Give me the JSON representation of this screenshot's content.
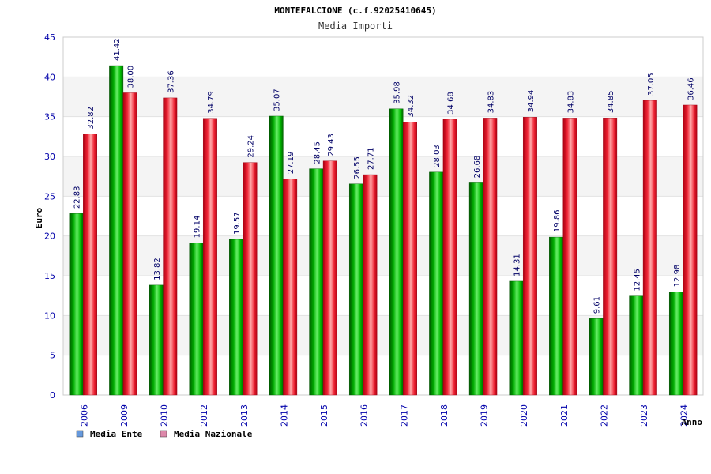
{
  "chart_data": {
    "type": "bar",
    "title": "MONTEFALCIONE (c.f.92025410645)",
    "subtitle": "Media Importi",
    "ylabel": "Euro",
    "xlabel": "Anno",
    "ylim": [
      0,
      45
    ],
    "yticks": [
      "0",
      "5",
      "10",
      "15",
      "20",
      "25",
      "30",
      "35",
      "40",
      "45"
    ],
    "grid": true,
    "legend_placement": "bottom-left",
    "categories": [
      "2006",
      "2009",
      "2010",
      "2012",
      "2013",
      "2014",
      "2015",
      "2016",
      "2017",
      "2018",
      "2019",
      "2020",
      "2021",
      "2022",
      "2023",
      "2024"
    ],
    "series": [
      {
        "name": "Media Ente",
        "legend_color": "#6699dd",
        "bar_color": "#00aa00",
        "values": [
          22.83,
          41.42,
          13.82,
          19.14,
          19.57,
          35.07,
          28.45,
          26.55,
          35.98,
          28.03,
          26.68,
          14.31,
          19.86,
          9.61,
          12.45,
          12.98
        ],
        "labels": [
          "22.83",
          "41.42",
          "13.82",
          "19.14",
          "19.57",
          "35.07",
          "28.45",
          "26.55",
          "35.98",
          "28.03",
          "26.68",
          "14.31",
          "19.86",
          "9.61",
          "12.45",
          "12.98"
        ]
      },
      {
        "name": "Media Nazionale",
        "legend_color": "#dd88aa",
        "bar_color": "#ee2233",
        "values": [
          32.82,
          38.0,
          37.36,
          34.79,
          29.24,
          27.19,
          29.43,
          27.71,
          34.32,
          34.68,
          34.83,
          34.94,
          34.83,
          34.85,
          37.05,
          36.46
        ],
        "labels": [
          "32.82",
          "38.00",
          "37.36",
          "34.79",
          "29.24",
          "27.19",
          "29.43",
          "27.71",
          "34.32",
          "34.68",
          "34.83",
          "34.94",
          "34.83",
          "34.85",
          "37.05",
          "36.46"
        ]
      }
    ]
  }
}
